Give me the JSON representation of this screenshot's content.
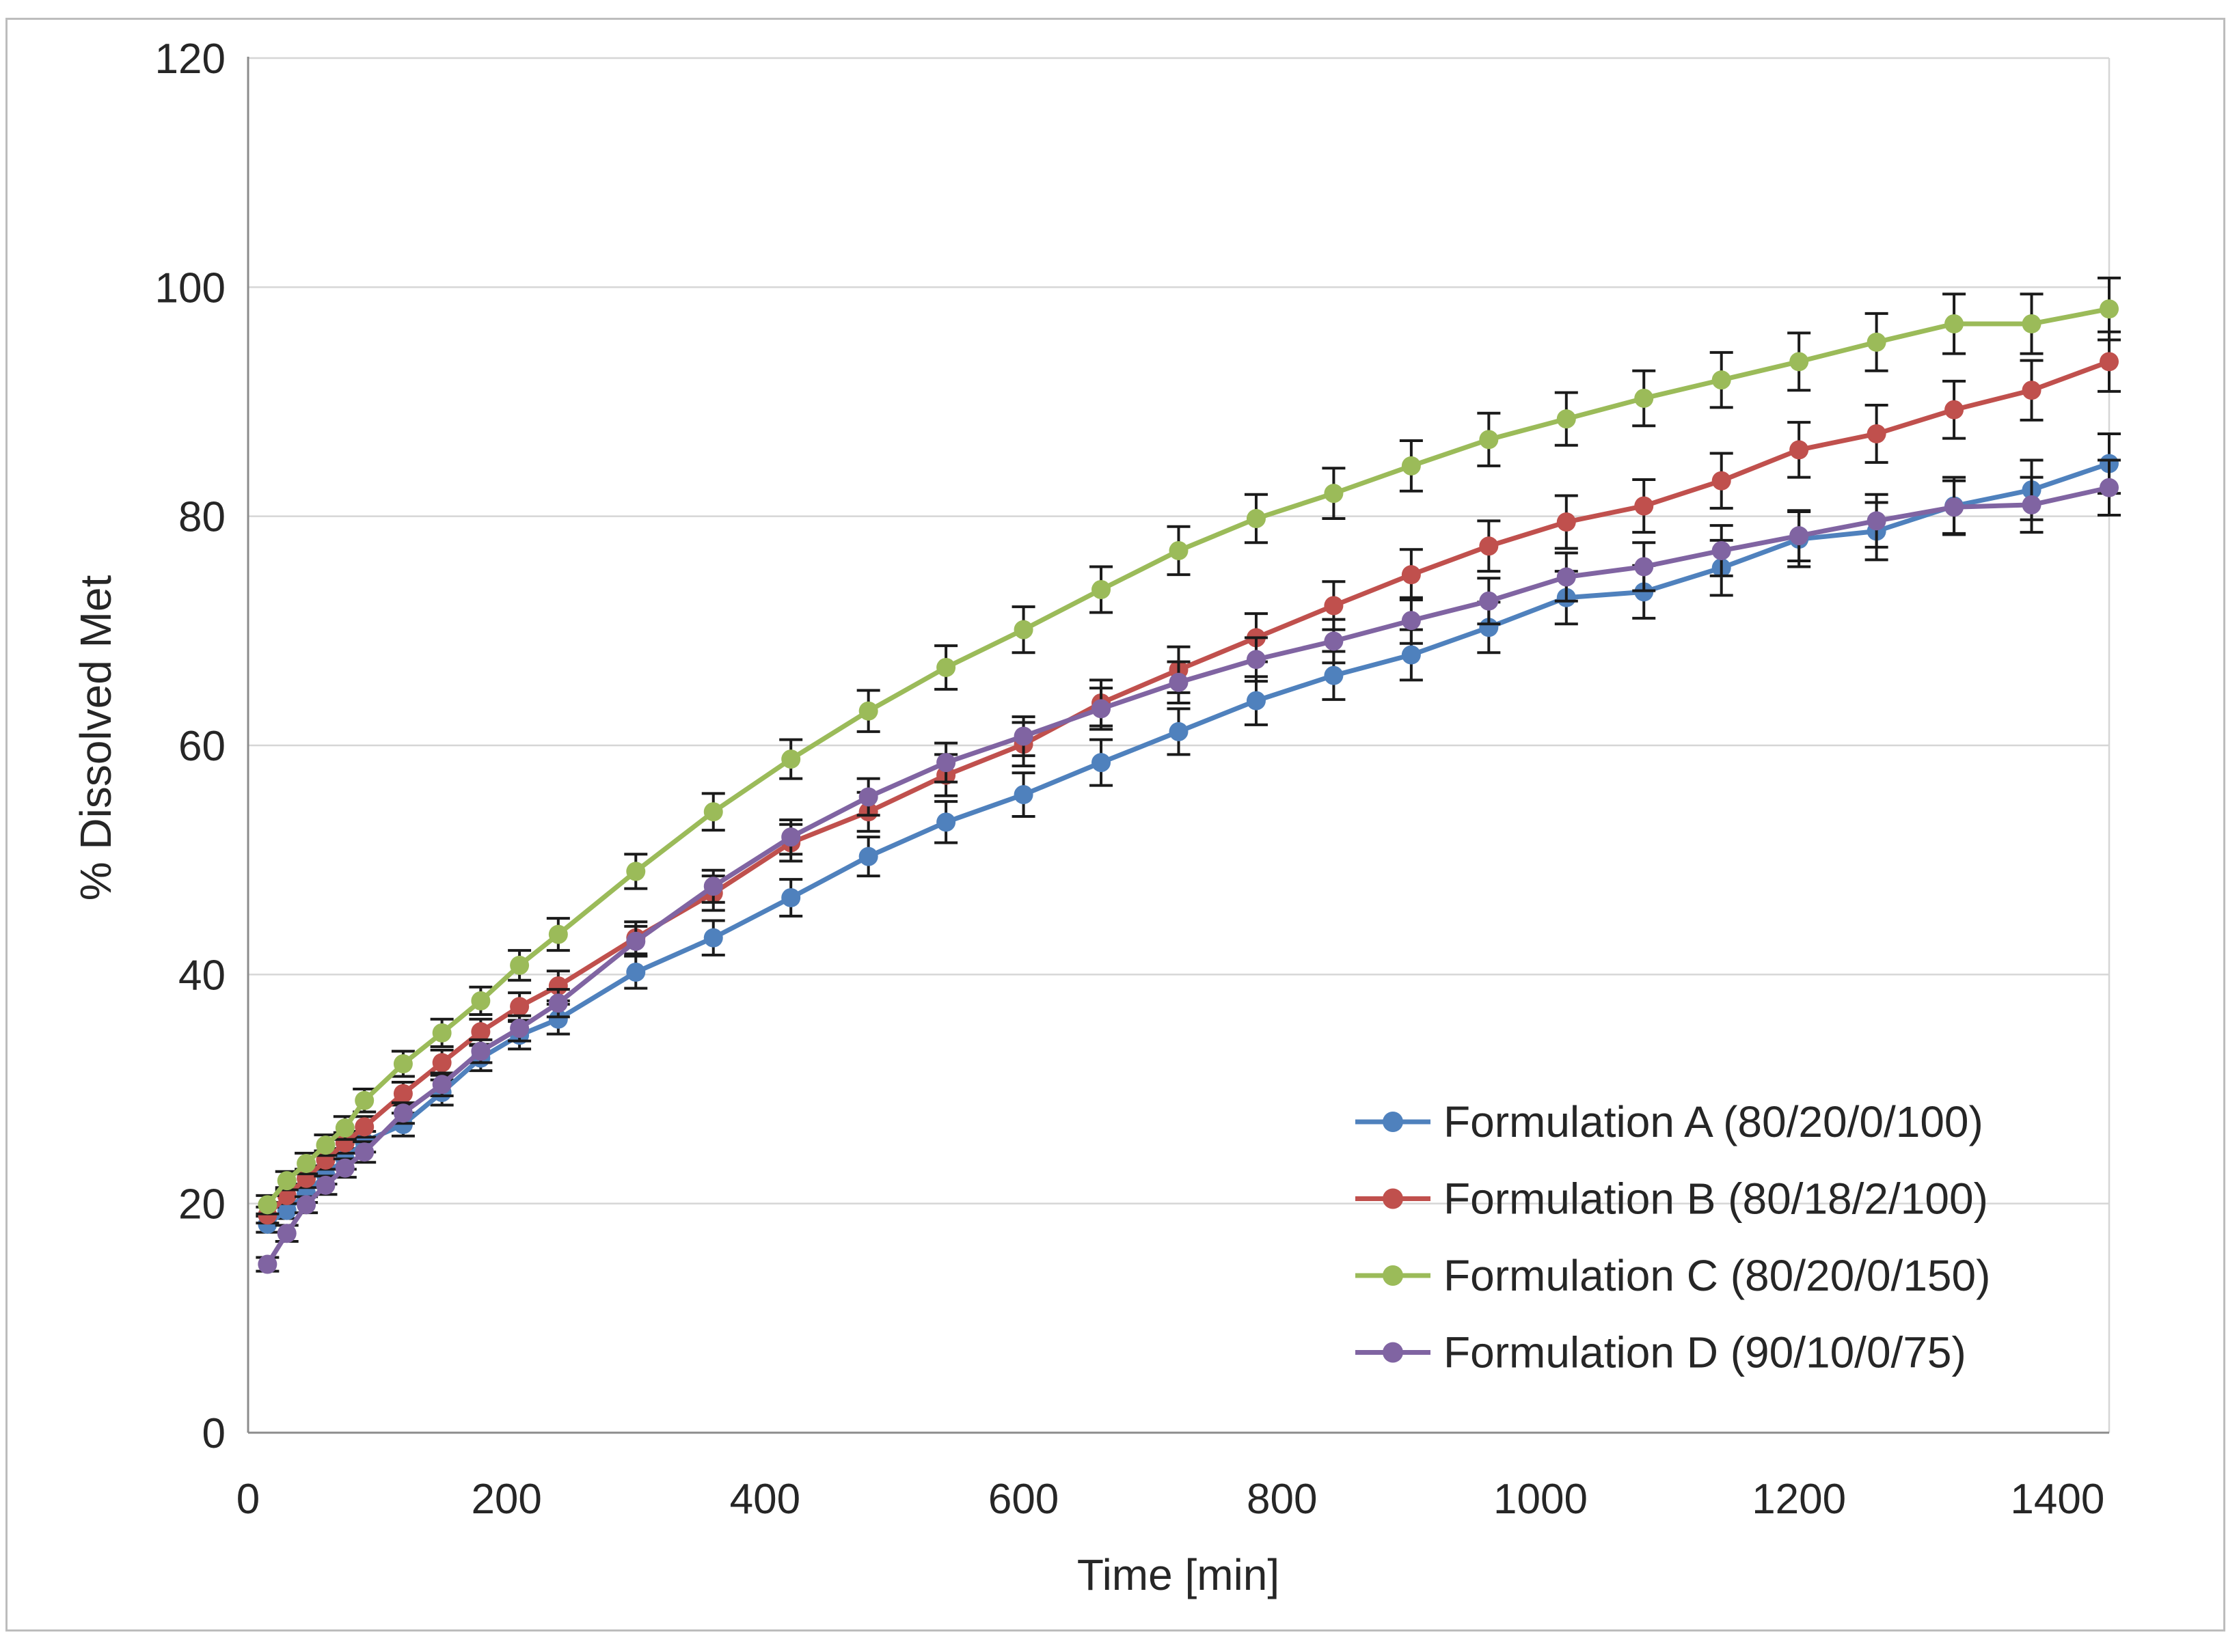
{
  "figure": {
    "background": "#ffffff",
    "border_color": "#bdbdbd"
  },
  "chart_data": {
    "type": "line",
    "title": "",
    "xlabel": "Time [min]",
    "ylabel": "% Dissolved Met",
    "xlim": [
      0,
      1440
    ],
    "ylim": [
      0,
      120
    ],
    "x_ticks": [
      0,
      200,
      400,
      600,
      800,
      1000,
      1200,
      1400
    ],
    "y_ticks": [
      0,
      20,
      40,
      60,
      80,
      100,
      120
    ],
    "grid": "horizontal",
    "legend_position": "inside-bottom-right",
    "error_bars": true,
    "marker": "circle",
    "gridline_color": "#d6d6d6",
    "axis_color": "#8c8c8c",
    "text_color": "#262626",
    "error_bar_color": "#1a1a1a",
    "x": [
      15,
      30,
      45,
      60,
      75,
      90,
      120,
      150,
      180,
      210,
      240,
      300,
      360,
      420,
      480,
      540,
      600,
      660,
      720,
      780,
      840,
      900,
      960,
      1020,
      1080,
      1140,
      1200,
      1260,
      1320,
      1380,
      1440
    ],
    "series": [
      {
        "name": "Formulation A (80/20/0/100)",
        "color": "#4F81BD",
        "values": [
          18.2,
          19.4,
          20.9,
          22.5,
          23.9,
          25.4,
          26.9,
          29.7,
          32.7,
          34.7,
          36.1,
          40.2,
          43.2,
          46.7,
          50.3,
          53.3,
          55.7,
          58.5,
          61.2,
          63.9,
          66.1,
          67.9,
          70.3,
          72.9,
          73.4,
          75.5,
          78.0,
          78.7,
          80.9,
          82.3,
          84.6
        ],
        "err": [
          0.7,
          0.7,
          0.8,
          0.8,
          0.9,
          0.9,
          1.0,
          1.1,
          1.1,
          1.2,
          1.3,
          1.4,
          1.5,
          1.6,
          1.7,
          1.8,
          1.9,
          2.0,
          2.0,
          2.1,
          2.1,
          2.2,
          2.2,
          2.3,
          2.3,
          2.4,
          2.4,
          2.5,
          2.5,
          2.6,
          2.6
        ]
      },
      {
        "name": "Formulation B (80/18/2/100)",
        "color": "#C0504D",
        "values": [
          19.0,
          20.7,
          22.2,
          23.8,
          25.3,
          26.7,
          29.6,
          32.3,
          35.0,
          37.2,
          39.0,
          43.2,
          47.1,
          51.5,
          54.2,
          57.4,
          60.1,
          63.7,
          66.6,
          69.4,
          72.2,
          74.9,
          77.4,
          79.5,
          80.9,
          83.1,
          85.8,
          87.2,
          89.3,
          91.0,
          93.5
        ],
        "err": [
          0.7,
          0.7,
          0.8,
          0.8,
          0.9,
          0.9,
          1.0,
          1.1,
          1.1,
          1.2,
          1.3,
          1.4,
          1.5,
          1.6,
          1.7,
          1.8,
          1.9,
          2.0,
          2.0,
          2.1,
          2.1,
          2.2,
          2.2,
          2.3,
          2.3,
          2.4,
          2.4,
          2.5,
          2.5,
          2.6,
          2.6
        ]
      },
      {
        "name": "Formulation C (80/20/0/150)",
        "color": "#9BBB59",
        "values": [
          19.9,
          22.0,
          23.5,
          25.1,
          26.6,
          29.0,
          32.2,
          34.9,
          37.7,
          40.8,
          43.5,
          49.0,
          54.2,
          58.8,
          63.0,
          66.8,
          70.1,
          73.6,
          77.0,
          79.8,
          82.0,
          84.4,
          86.7,
          88.5,
          90.3,
          91.9,
          93.5,
          95.2,
          96.8,
          96.8,
          98.1
        ],
        "err": [
          0.8,
          0.8,
          0.9,
          0.9,
          1.0,
          1.0,
          1.1,
          1.2,
          1.2,
          1.3,
          1.4,
          1.5,
          1.6,
          1.7,
          1.8,
          1.9,
          2.0,
          2.0,
          2.1,
          2.1,
          2.2,
          2.2,
          2.3,
          2.3,
          2.4,
          2.4,
          2.5,
          2.5,
          2.6,
          2.6,
          2.7
        ]
      },
      {
        "name": "Formulation D (90/10/0/75)",
        "color": "#8064A2",
        "values": [
          14.7,
          17.4,
          19.9,
          21.6,
          23.1,
          24.5,
          27.9,
          30.4,
          33.3,
          35.3,
          37.5,
          42.9,
          47.7,
          52.0,
          55.5,
          58.5,
          60.8,
          63.2,
          65.5,
          67.5,
          69.1,
          70.9,
          72.6,
          74.7,
          75.6,
          77.0,
          78.3,
          79.6,
          80.8,
          81.0,
          82.5
        ],
        "err": [
          0.6,
          0.7,
          0.7,
          0.8,
          0.8,
          0.9,
          0.9,
          1.0,
          1.0,
          1.1,
          1.2,
          1.3,
          1.4,
          1.5,
          1.6,
          1.7,
          1.7,
          1.8,
          1.8,
          1.9,
          1.9,
          2.0,
          2.0,
          2.1,
          2.1,
          2.2,
          2.2,
          2.3,
          2.3,
          2.4,
          2.4
        ]
      }
    ]
  }
}
